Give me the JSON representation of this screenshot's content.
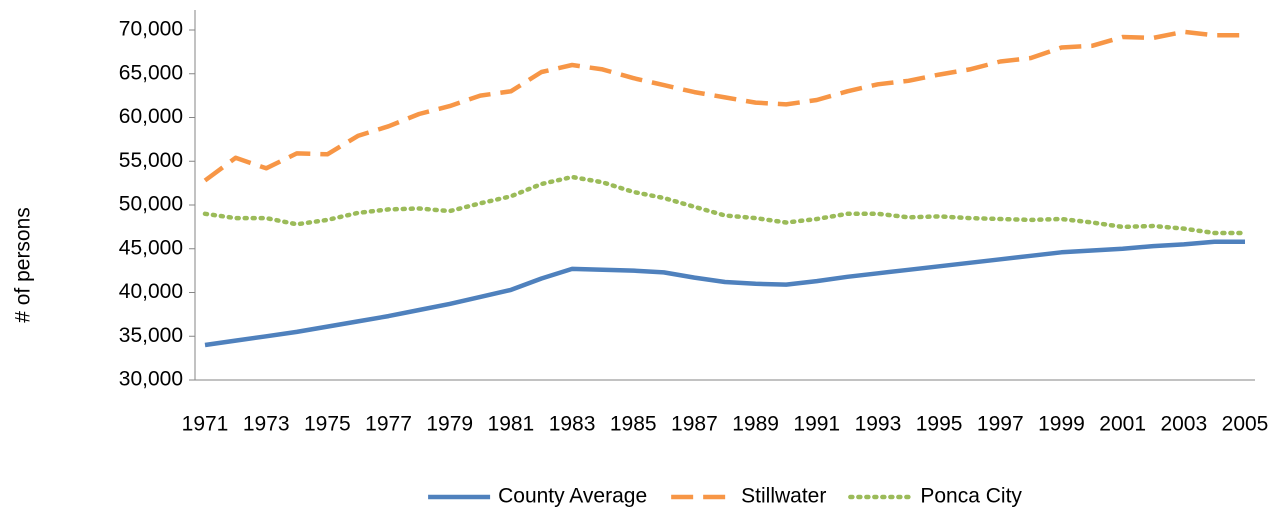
{
  "chart_data": {
    "type": "line",
    "y_label": "# of persons",
    "categories": [
      "1971",
      null,
      "1973",
      null,
      "1975",
      null,
      "1977",
      null,
      "1979",
      null,
      "1981",
      null,
      "1983",
      null,
      "1985",
      null,
      "1987",
      null,
      "1989",
      null,
      "1991",
      null,
      "1993",
      null,
      "1995",
      null,
      "1997",
      null,
      "1999",
      null,
      "2001",
      null,
      "2003",
      null,
      "2005"
    ],
    "series": [
      {
        "name": "County Average",
        "color": "#4f81bd",
        "line_style": "solid",
        "values": [
          34000,
          34500,
          35000,
          35500,
          36100,
          36700,
          37300,
          38000,
          38700,
          39500,
          40300,
          41600,
          42700,
          42600,
          42500,
          42300,
          41700,
          41200,
          41000,
          40900,
          41300,
          41800,
          42200,
          42600,
          43000,
          43400,
          43800,
          44200,
          44600,
          44800,
          45000,
          45300,
          45500,
          45800,
          45800
        ]
      },
      {
        "name": "Stillwater",
        "color": "#f79646",
        "line_style": "dashed",
        "values": [
          52800,
          55400,
          54200,
          55900,
          55800,
          57900,
          59000,
          60400,
          61300,
          62500,
          63000,
          65200,
          66000,
          65500,
          64500,
          63700,
          62900,
          62300,
          61700,
          61500,
          62000,
          63000,
          63800,
          64200,
          64900,
          65500,
          66400,
          66800,
          68000,
          68200,
          69200,
          69100,
          69800,
          69400,
          69400
        ]
      },
      {
        "name": "Ponca City",
        "color": "#9bbb59",
        "line_style": "dotted",
        "values": [
          49000,
          48500,
          48500,
          47800,
          48300,
          49100,
          49500,
          49600,
          49300,
          50200,
          51000,
          52400,
          53200,
          52600,
          51500,
          50800,
          49800,
          48800,
          48500,
          48000,
          48400,
          49000,
          49000,
          48600,
          48700,
          48500,
          48400,
          48300,
          48400,
          48000,
          47500,
          47600,
          47300,
          46800,
          46800
        ]
      }
    ],
    "ylim": [
      30000,
      70000
    ],
    "yticks": [
      {
        "value": 30000,
        "label": "30,000"
      },
      {
        "value": 35000,
        "label": "35,000"
      },
      {
        "value": 40000,
        "label": "40,000"
      },
      {
        "value": 45000,
        "label": "45,000"
      },
      {
        "value": 50000,
        "label": "50,000"
      },
      {
        "value": 55000,
        "label": "55,000"
      },
      {
        "value": 60000,
        "label": "60,000"
      },
      {
        "value": 65000,
        "label": "65,000"
      },
      {
        "value": 70000,
        "label": "70,000"
      }
    ],
    "grid": false,
    "legend": "bottom"
  }
}
